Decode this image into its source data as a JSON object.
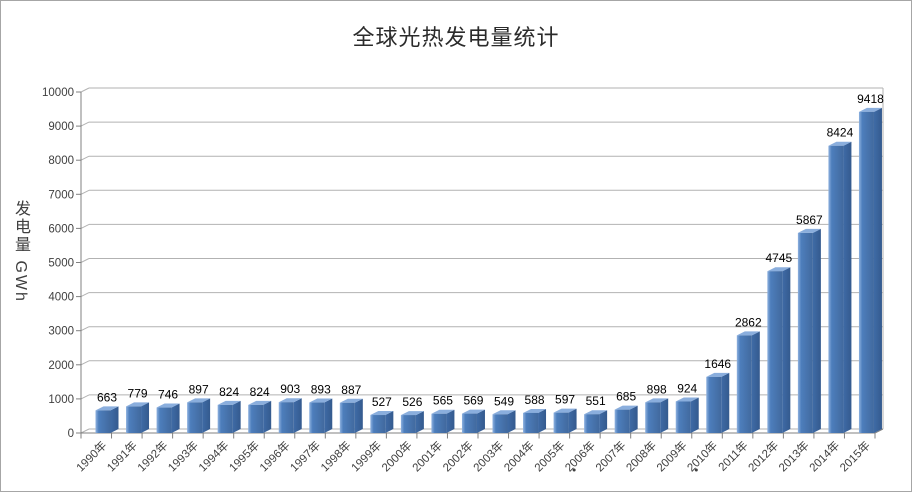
{
  "title": "全球光热发电量统计",
  "chart_data": {
    "type": "bar",
    "style": "3d-clustered-column",
    "title": "全球光热发电量统计",
    "xlabel": "",
    "ylabel": "发电量 GWh",
    "categories": [
      "1990年",
      "1991年",
      "1992年",
      "1993年",
      "1994年",
      "1995年",
      "1996年",
      "1997年",
      "1998年",
      "1999年",
      "2000年",
      "2001年",
      "2002年",
      "2003年",
      "2004年",
      "2005年",
      "2006年",
      "2007年",
      "2008年",
      "2009年",
      "2010年",
      "2011年",
      "2012年",
      "2013年",
      "2014年",
      "2015年"
    ],
    "values": [
      663,
      779,
      746,
      897,
      824,
      824,
      903,
      893,
      887,
      527,
      526,
      565,
      569,
      549,
      588,
      597,
      551,
      685,
      898,
      924,
      1646,
      2862,
      4745,
      5867,
      8424,
      9418
    ],
    "ylim": [
      0,
      10000
    ],
    "y_ticks": [
      0,
      1000,
      2000,
      3000,
      4000,
      5000,
      6000,
      7000,
      8000,
      9000,
      10000
    ],
    "grid": true,
    "legend": false,
    "bar_color": "#4f81bd",
    "stray_dots_before": [
      "2007年",
      "2011年"
    ]
  },
  "colors": {
    "background": "#ffffff",
    "border": "#a6a6a6",
    "gridline": "#b2b2b2",
    "axis": "#808080",
    "tick_text": "#3f3f3f",
    "value_label": "#000000",
    "bar_front_light": "#8fb2e0",
    "bar_front": "#4d7ebc",
    "bar_front_dark": "#41699e",
    "bar_top": "#8aaedd",
    "bar_side": "#3f6ba6",
    "bar_side_dark": "#345a8e"
  }
}
